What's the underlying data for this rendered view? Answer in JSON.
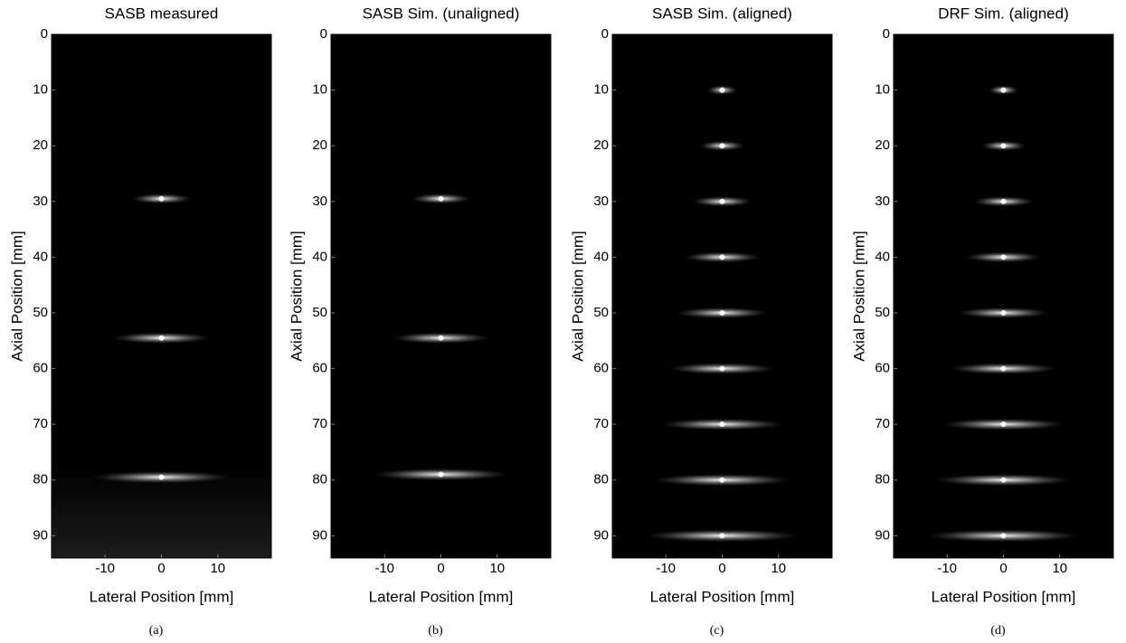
{
  "chart_data": [
    {
      "type": "image",
      "title": "SASB measured",
      "xlabel": "Lateral Position [mm]",
      "ylabel": "Axial Position [mm]",
      "caption": "(a)",
      "xlim": [
        -19.5,
        19.5
      ],
      "ylim": [
        0,
        94
      ],
      "xticks": [
        -10,
        0,
        10
      ],
      "yticks": [
        0,
        10,
        20,
        30,
        40,
        50,
        60,
        70,
        80,
        90
      ],
      "x": [
        0,
        0,
        0
      ],
      "values": [
        29.5,
        54.5,
        79.5
      ]
    },
    {
      "type": "image",
      "title": "SASB Sim. (unaligned)",
      "xlabel": "Lateral Position [mm]",
      "ylabel": "Axial Position [mm]",
      "caption": "(b)",
      "xlim": [
        -19.5,
        19.5
      ],
      "ylim": [
        0,
        94
      ],
      "xticks": [
        -10,
        0,
        10
      ],
      "yticks": [
        0,
        10,
        20,
        30,
        40,
        50,
        60,
        70,
        80,
        90
      ],
      "x": [
        0,
        0,
        0
      ],
      "values": [
        29.5,
        54.5,
        79
      ]
    },
    {
      "type": "image",
      "title": "SASB Sim. (aligned)",
      "xlabel": "Lateral Position [mm]",
      "ylabel": "Axial Position [mm]",
      "caption": "(c)",
      "xlim": [
        -19.5,
        19.5
      ],
      "ylim": [
        0,
        94
      ],
      "xticks": [
        -10,
        0,
        10
      ],
      "yticks": [
        0,
        10,
        20,
        30,
        40,
        50,
        60,
        70,
        80,
        90
      ],
      "x": [
        0,
        0,
        0,
        0,
        0,
        0,
        0,
        0,
        0
      ],
      "values": [
        10,
        20,
        30,
        40,
        50,
        60,
        70,
        80,
        90
      ]
    },
    {
      "type": "image",
      "title": "DRF Sim. (aligned)",
      "xlabel": "Lateral Position [mm]",
      "ylabel": "Axial Position [mm]",
      "caption": "(d)",
      "xlim": [
        -19.5,
        19.5
      ],
      "ylim": [
        0,
        94
      ],
      "xticks": [
        -10,
        0,
        10
      ],
      "yticks": [
        0,
        10,
        20,
        30,
        40,
        50,
        60,
        70,
        80,
        90
      ],
      "x": [
        0,
        0,
        0,
        0,
        0,
        0,
        0,
        0,
        0
      ],
      "values": [
        10,
        20,
        30,
        40,
        50,
        60,
        70,
        80,
        90
      ]
    }
  ]
}
